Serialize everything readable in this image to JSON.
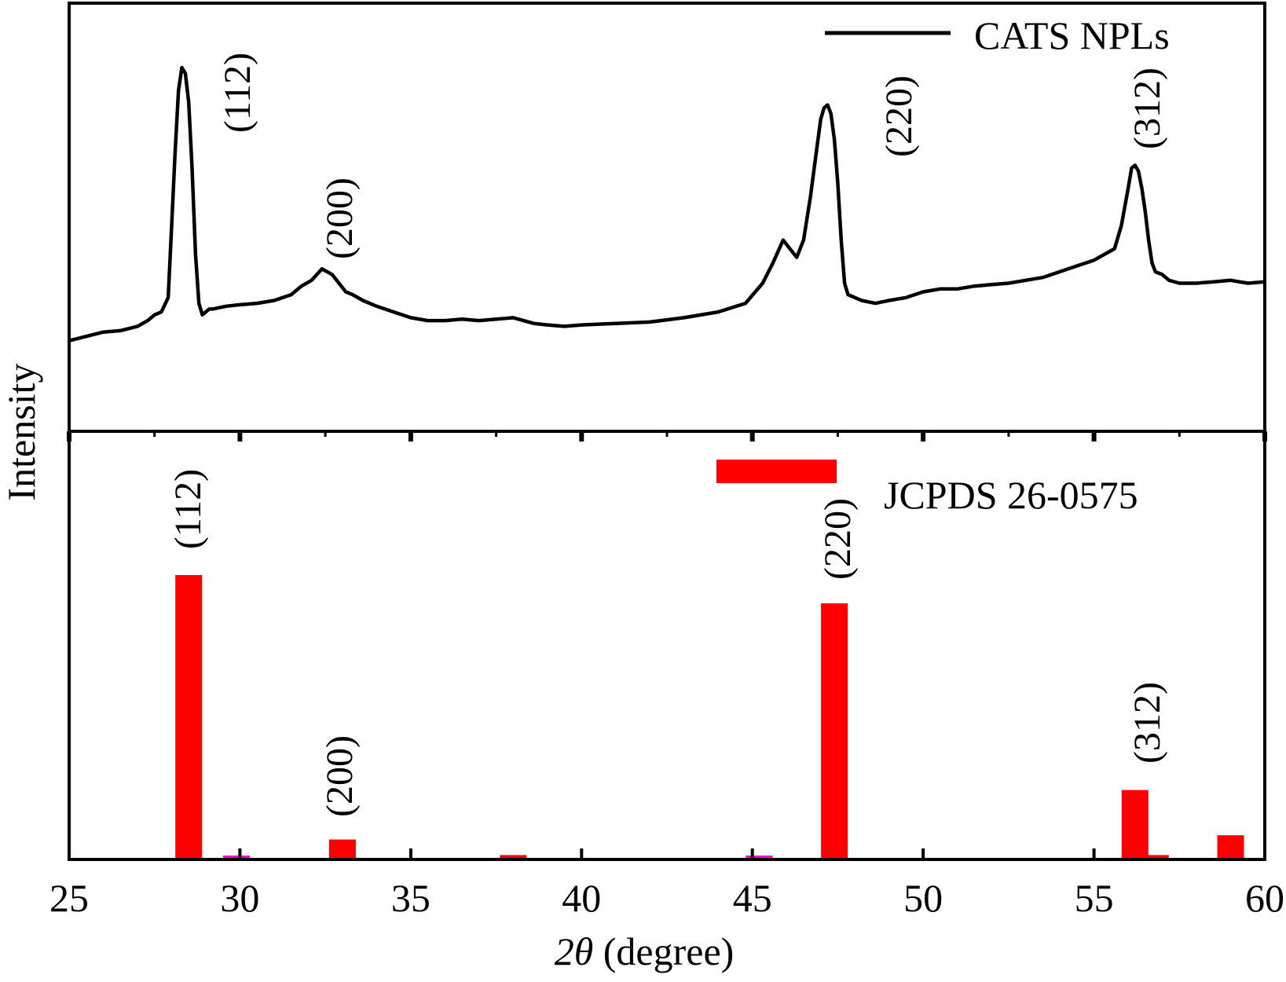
{
  "chart_data": [
    {
      "type": "line",
      "panel": "top",
      "series": [
        {
          "name": "CATS NPLs",
          "color": "#000000",
          "x": [
            25,
            25.5,
            26,
            26.5,
            27,
            27.3,
            27.5,
            27.7,
            27.9,
            28.0,
            28.1,
            28.2,
            28.3,
            28.4,
            28.5,
            28.6,
            28.7,
            28.8,
            28.9,
            29.0,
            29.1,
            29.2,
            29.4,
            29.6,
            30,
            30.5,
            31,
            31.5,
            31.8,
            32.1,
            32.4,
            32.7,
            32.9,
            33.1,
            33.3,
            33.6,
            34,
            34.5,
            35,
            35.5,
            36,
            36.5,
            37,
            37.5,
            38,
            38.3,
            38.6,
            39,
            39.5,
            40,
            41,
            42,
            43,
            44,
            44.8,
            45.3,
            45.6,
            45.9,
            46.1,
            46.3,
            46.5,
            46.7,
            46.9,
            47.0,
            47.1,
            47.2,
            47.3,
            47.4,
            47.5,
            47.6,
            47.7,
            47.8,
            48.0,
            48.2,
            48.6,
            49.0,
            49.5,
            50,
            50.5,
            51,
            51.5,
            52,
            52.5,
            53,
            53.5,
            54,
            54.5,
            55,
            55.3,
            55.6,
            55.8,
            56.0,
            56.1,
            56.2,
            56.3,
            56.4,
            56.5,
            56.6,
            56.7,
            56.8,
            57.0,
            57.2,
            57.5,
            58,
            58.5,
            59,
            59.5,
            60
          ],
          "y": [
            5,
            6.5,
            8,
            8.5,
            10,
            12,
            14,
            15,
            20,
            45,
            70,
            92,
            100,
            98,
            88,
            65,
            35,
            18,
            14,
            15,
            16,
            16,
            16.5,
            17,
            17.5,
            18,
            19,
            21,
            24,
            26,
            30,
            28,
            25,
            22,
            21,
            19,
            17,
            15,
            13,
            12,
            12,
            12.5,
            12,
            12.5,
            13,
            12,
            11,
            10.5,
            10,
            10.5,
            11,
            11.5,
            13,
            15,
            18,
            25,
            32,
            40,
            37,
            34,
            40,
            55,
            73,
            82,
            86,
            87,
            84,
            75,
            60,
            40,
            25,
            21,
            20,
            19,
            18,
            19,
            20,
            22,
            23,
            23,
            24,
            24.5,
            25,
            26,
            27,
            29,
            31,
            33,
            35,
            37,
            45,
            58,
            65,
            66,
            64,
            58,
            50,
            40,
            32,
            29,
            28,
            26,
            25,
            25,
            25.5,
            26,
            25,
            25.5
          ],
          "line_width": 4.5
        }
      ],
      "xlim": [
        25,
        60
      ],
      "peak_labels": [
        "(112)",
        "(200)",
        "(220)",
        "(312)"
      ],
      "legend_position": "top-right"
    },
    {
      "type": "bar",
      "panel": "bottom",
      "series": [
        {
          "name": "JCPDS 26-0575",
          "color": "#ff0000",
          "x": [
            28.5,
            29.9,
            33.0,
            38.0,
            45.2,
            47.4,
            56.2,
            56.8,
            59.0
          ],
          "values": [
            100,
            0.5,
            6.5,
            1,
            0.5,
            90,
            24,
            1,
            8
          ]
        }
      ],
      "xlim": [
        25,
        60
      ],
      "ylim": [
        0,
        100
      ],
      "peak_labels": [
        "(112)",
        "(200)",
        "(220)",
        "(312)"
      ],
      "legend_position": "top-right"
    }
  ],
  "axes": {
    "x_ticks": [
      "25",
      "30",
      "35",
      "40",
      "45",
      "50",
      "55",
      "60"
    ],
    "xlabel_symbol": "2θ",
    "xlabel_rest": " (degree)",
    "ylabel": "Intensity"
  },
  "legend": {
    "top_label": "CATS NPLs",
    "bottom_label": "JCPDS 26-0575"
  },
  "labels": {
    "top_112": "(112)",
    "top_200": "(200)",
    "top_220": "(220)",
    "top_312": "(312)",
    "bottom_112": "(112)",
    "bottom_200": "(200)",
    "bottom_220": "(220)",
    "bottom_312": "(312)"
  },
  "colors": {
    "reference_bar": "#ff0000",
    "pattern_line": "#000000",
    "axis": "#000000"
  }
}
